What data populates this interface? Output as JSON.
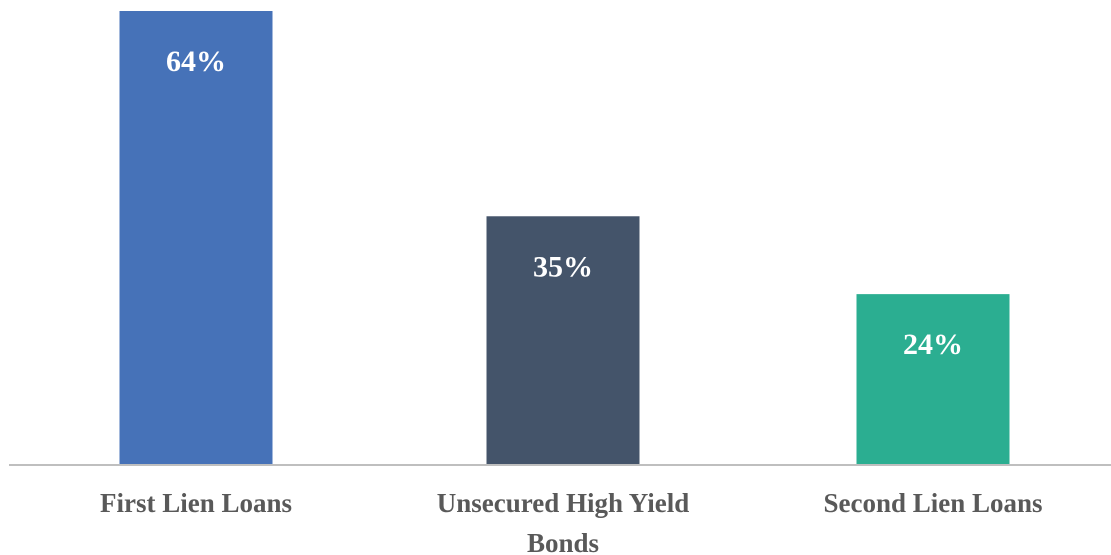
{
  "chart_data": {
    "type": "bar",
    "categories": [
      "First Lien Loans",
      "Unsecured High Yield Bonds",
      "Second Lien Loans"
    ],
    "category_label_lines": [
      [
        "First Lien Loans"
      ],
      [
        "Unsecured High Yield",
        "Bonds"
      ],
      [
        "Second Lien Loans"
      ]
    ],
    "values": [
      64,
      35,
      24
    ],
    "value_labels": [
      "64%",
      "35%",
      "24%"
    ],
    "colors": [
      "#4672B8",
      "#44546A",
      "#2BAE91"
    ],
    "title": "",
    "xlabel": "",
    "ylabel": "",
    "ylim": [
      0,
      64
    ],
    "grid": false,
    "legend": "none",
    "axis_color": "#BFBFBF"
  }
}
